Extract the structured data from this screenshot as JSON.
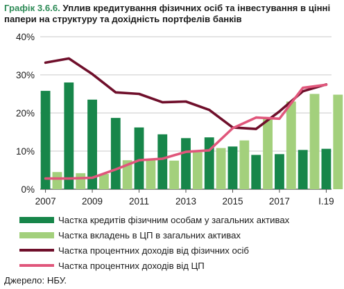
{
  "header": {
    "label": "Графік 3.6.6.",
    "title": "Уплив кредитування фізичних осіб та інвестування в цінні папери на структуру та дохідність портфелів банків"
  },
  "footer": {
    "source": "Джерело: НБУ."
  },
  "colors": {
    "dark_green": "#17864a",
    "light_green": "#a3d07c",
    "maroon": "#6f0f2b",
    "pink": "#e0567b",
    "grid": "#c8c8c8",
    "axis": "#4a4a4a"
  },
  "chart_data": {
    "type": "bar",
    "ylim": [
      0,
      40
    ],
    "yticks": [
      0,
      10,
      20,
      30,
      40
    ],
    "ytick_labels": [
      "0%",
      "10%",
      "20%",
      "30%",
      "40%"
    ],
    "categories": [
      "2007",
      "2007.5",
      "2008",
      "2008.5",
      "2009",
      "2009.5",
      "2010",
      "2010.5",
      "2011",
      "2011.5",
      "2012",
      "2012.5",
      "2013",
      "2013.5",
      "2014",
      "2014.5",
      "2015",
      "2015.5",
      "2016",
      "2016.5",
      "2017",
      "2017.5",
      "2018",
      "2018.5",
      "I.19"
    ],
    "xtick_labels": [
      {
        "index": 0,
        "label": "2007"
      },
      {
        "index": 4,
        "label": "2009"
      },
      {
        "index": 8,
        "label": "2011"
      },
      {
        "index": 12,
        "label": "2013"
      },
      {
        "index": 16,
        "label": "2015"
      },
      {
        "index": 20,
        "label": "2017"
      },
      {
        "index": 24,
        "label": "I.19"
      }
    ],
    "bar_series": [
      {
        "name": "Частка кредитів фізичним особам у загальних активах",
        "color": "#17864a",
        "points": [
          [
            0,
            25.8
          ],
          [
            2,
            28.0
          ],
          [
            4,
            23.5
          ],
          [
            6,
            18.7
          ],
          [
            8,
            16.2
          ],
          [
            10,
            14.4
          ],
          [
            12,
            13.4
          ],
          [
            14,
            13.6
          ],
          [
            16,
            11.2
          ],
          [
            18,
            9.0
          ],
          [
            20,
            9.2
          ],
          [
            22,
            10.3
          ],
          [
            24,
            10.6
          ]
        ]
      },
      {
        "name": "Частка вкладень в ЦП в загальних активах",
        "color": "#a3d07c",
        "points": [
          [
            0,
            4.5
          ],
          [
            2,
            4.2
          ],
          [
            4,
            4.0
          ],
          [
            6,
            7.6
          ],
          [
            8,
            7.6
          ],
          [
            10,
            7.5
          ],
          [
            12,
            9.7
          ],
          [
            14,
            10.8
          ],
          [
            16,
            12.8
          ],
          [
            18,
            18.6
          ],
          [
            20,
            23.0
          ],
          [
            22,
            25.0
          ],
          [
            24,
            24.8
          ]
        ]
      }
    ],
    "line_series": [
      {
        "name": "Частка процентних доходів від фізичних осіб",
        "color": "#6f0f2b",
        "points": [
          [
            0,
            33.2
          ],
          [
            2,
            34.3
          ],
          [
            4,
            30.2
          ],
          [
            6,
            25.4
          ],
          [
            8,
            25.0
          ],
          [
            10,
            22.8
          ],
          [
            12,
            23.0
          ],
          [
            14,
            20.8
          ],
          [
            16,
            16.2
          ],
          [
            18,
            15.8
          ],
          [
            20,
            20.4
          ],
          [
            22,
            25.7
          ],
          [
            24,
            27.5
          ]
        ]
      },
      {
        "name": "Частка процентних доходів від ЦП",
        "color": "#e0567b",
        "points": [
          [
            0,
            2.8
          ],
          [
            2,
            2.8
          ],
          [
            4,
            3.0
          ],
          [
            6,
            5.2
          ],
          [
            8,
            7.6
          ],
          [
            10,
            8.0
          ],
          [
            12,
            9.8
          ],
          [
            14,
            10.2
          ],
          [
            16,
            16.0
          ],
          [
            18,
            18.8
          ],
          [
            20,
            18.5
          ],
          [
            22,
            26.6
          ],
          [
            24,
            27.4
          ]
        ]
      }
    ],
    "legend_position": "bottom",
    "grid": true
  }
}
